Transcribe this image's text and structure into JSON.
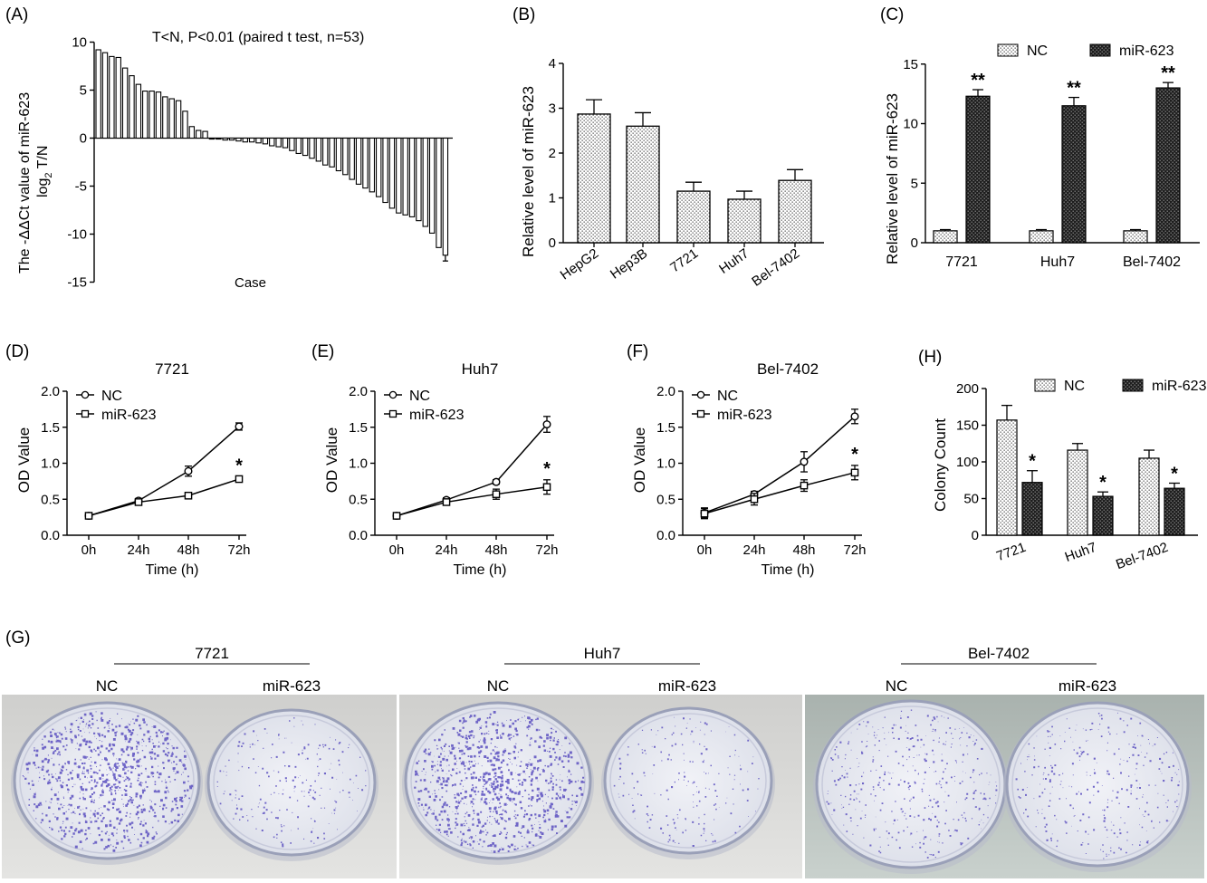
{
  "panels": {
    "A": {
      "label": "(A)",
      "annotation": "T<N, P<0.01 (paired t test, n=53)",
      "ylabel": "The -ΔΔCt value of miR-623",
      "ylabel2": "T/N",
      "ylabel_log": "log",
      "ylabel_log_sub": "2",
      "xlabel": "Case"
    },
    "B": {
      "label": "(B)"
    },
    "C": {
      "label": "(C)"
    },
    "D": {
      "label": "(D)"
    },
    "E": {
      "label": "(E)"
    },
    "F": {
      "label": "(F)"
    },
    "H": {
      "label": "(H)"
    },
    "G": {
      "label": "(G)",
      "groups": [
        {
          "title": "7721",
          "nc": "NC",
          "mir": "miR-623",
          "nc_density": "high",
          "mir_density": "low"
        },
        {
          "title": "Huh7",
          "nc": "NC",
          "mir": "miR-623",
          "nc_density": "high",
          "mir_density": "low"
        },
        {
          "title": "Bel-7402",
          "nc": "NC",
          "mir": "miR-623",
          "nc_density": "high",
          "mir_density": "low"
        }
      ]
    }
  },
  "colors": {
    "stain": "#5a4fc0",
    "dish_bg": "#e9ebf2"
  },
  "chart_data": [
    {
      "panel": "A",
      "type": "bar",
      "title": "T<N, P<0.01 (paired t test, n=53)",
      "xlabel": "Case",
      "ylim": [
        -15,
        10
      ],
      "yticks": [
        10,
        5,
        0,
        -5,
        -10,
        -15
      ],
      "values": [
        9.2,
        8.9,
        8.5,
        8.4,
        7.3,
        6.5,
        5.6,
        4.9,
        4.9,
        4.8,
        4.3,
        4.1,
        3.9,
        2.8,
        1.2,
        0.8,
        0.7,
        -0.1,
        -0.1,
        -0.2,
        -0.2,
        -0.3,
        -0.4,
        -0.4,
        -0.5,
        -0.6,
        -0.8,
        -0.9,
        -1.0,
        -1.3,
        -1.6,
        -1.8,
        -2.1,
        -2.4,
        -2.8,
        -3.0,
        -3.4,
        -3.8,
        -4.3,
        -4.8,
        -5.2,
        -5.6,
        -6.1,
        -6.7,
        -7.3,
        -7.8,
        -8.0,
        -8.2,
        -8.6,
        -9.2,
        -9.9,
        -11.4,
        -12.2
      ],
      "last_error": 0.6
    },
    {
      "panel": "B",
      "type": "bar",
      "ylabel": "Relative  level of miR-623",
      "ylim": [
        0,
        4
      ],
      "yticks": [
        0,
        1,
        2,
        3,
        4
      ],
      "categories": [
        "HepG2",
        "Hep3B",
        "7721",
        "Huh7",
        "Bel-7402"
      ],
      "values": [
        2.87,
        2.6,
        1.15,
        0.97,
        1.39
      ],
      "errors": [
        0.32,
        0.3,
        0.2,
        0.18,
        0.24
      ]
    },
    {
      "panel": "C",
      "type": "bar",
      "ylabel": "Relative  level of miR-623",
      "ylim": [
        0,
        15
      ],
      "yticks": [
        0,
        5,
        10,
        15
      ],
      "categories": [
        "7721",
        "Huh7",
        "Bel-7402"
      ],
      "series": [
        {
          "name": "NC",
          "values": [
            1.0,
            1.0,
            1.0
          ],
          "errors": [
            0.1,
            0.1,
            0.1
          ]
        },
        {
          "name": "miR-623",
          "values": [
            12.3,
            11.5,
            13.0
          ],
          "errors": [
            0.55,
            0.7,
            0.45
          ]
        }
      ],
      "annotations": [
        "**",
        "**",
        "**"
      ],
      "legend": "top"
    },
    {
      "panel": "D",
      "type": "line",
      "title": "7721",
      "xlabel": "Time (h)",
      "ylabel": "OD Value",
      "ylim": [
        0,
        2
      ],
      "yticks": [
        "0.0",
        "0.5",
        "1.0",
        "1.5",
        "2.0"
      ],
      "x": [
        "0h",
        "24h",
        "48h",
        "72h"
      ],
      "series": [
        {
          "name": "NC",
          "marker": "circle",
          "values": [
            0.27,
            0.48,
            0.89,
            1.51
          ],
          "errors": [
            0.03,
            0.03,
            0.07,
            0.05
          ]
        },
        {
          "name": "miR-623",
          "marker": "square",
          "values": [
            0.27,
            0.46,
            0.55,
            0.78
          ],
          "errors": [
            0.02,
            0.02,
            0.03,
            0.03
          ]
        }
      ],
      "annotation": "*",
      "legend": "top-left"
    },
    {
      "panel": "E",
      "type": "line",
      "title": "Huh7",
      "xlabel": "Time (h)",
      "ylabel": "OD Value",
      "ylim": [
        0,
        2
      ],
      "yticks": [
        "0.0",
        "0.5",
        "1.0",
        "1.5",
        "2.0"
      ],
      "x": [
        "0h",
        "24h",
        "48h",
        "72h"
      ],
      "series": [
        {
          "name": "NC",
          "marker": "circle",
          "values": [
            0.27,
            0.49,
            0.74,
            1.54
          ],
          "errors": [
            0.02,
            0.03,
            0.03,
            0.11
          ]
        },
        {
          "name": "miR-623",
          "marker": "square",
          "values": [
            0.27,
            0.46,
            0.57,
            0.67
          ],
          "errors": [
            0.02,
            0.03,
            0.07,
            0.1
          ]
        }
      ],
      "annotation": "*",
      "legend": "top-left"
    },
    {
      "panel": "F",
      "type": "line",
      "title": "Bel-7402",
      "xlabel": "Time (h)",
      "ylabel": "OD Value",
      "ylim": [
        0,
        2
      ],
      "yticks": [
        "0.0",
        "0.5",
        "1.0",
        "1.5",
        "2.0"
      ],
      "x": [
        "0h",
        "24h",
        "48h",
        "72h"
      ],
      "series": [
        {
          "name": "NC",
          "marker": "circle",
          "values": [
            0.31,
            0.57,
            1.02,
            1.65
          ],
          "errors": [
            0.07,
            0.04,
            0.14,
            0.1
          ]
        },
        {
          "name": "miR-623",
          "marker": "square",
          "values": [
            0.3,
            0.5,
            0.69,
            0.87
          ],
          "errors": [
            0.07,
            0.08,
            0.08,
            0.1
          ]
        }
      ],
      "annotation": "*",
      "legend": "top-left"
    },
    {
      "panel": "H",
      "type": "bar",
      "ylabel": "Colony Count",
      "ylim": [
        0,
        200
      ],
      "yticks": [
        0,
        50,
        100,
        150,
        200
      ],
      "categories": [
        "7721",
        "Huh7",
        "Bel-7402"
      ],
      "series": [
        {
          "name": "NC",
          "values": [
            157,
            116,
            105
          ],
          "errors": [
            20,
            9,
            11
          ]
        },
        {
          "name": "miR-623",
          "values": [
            72,
            53,
            64
          ],
          "errors": [
            16,
            6,
            7
          ]
        }
      ],
      "annotations": [
        "*",
        "*",
        "*"
      ],
      "legend": "top"
    }
  ]
}
